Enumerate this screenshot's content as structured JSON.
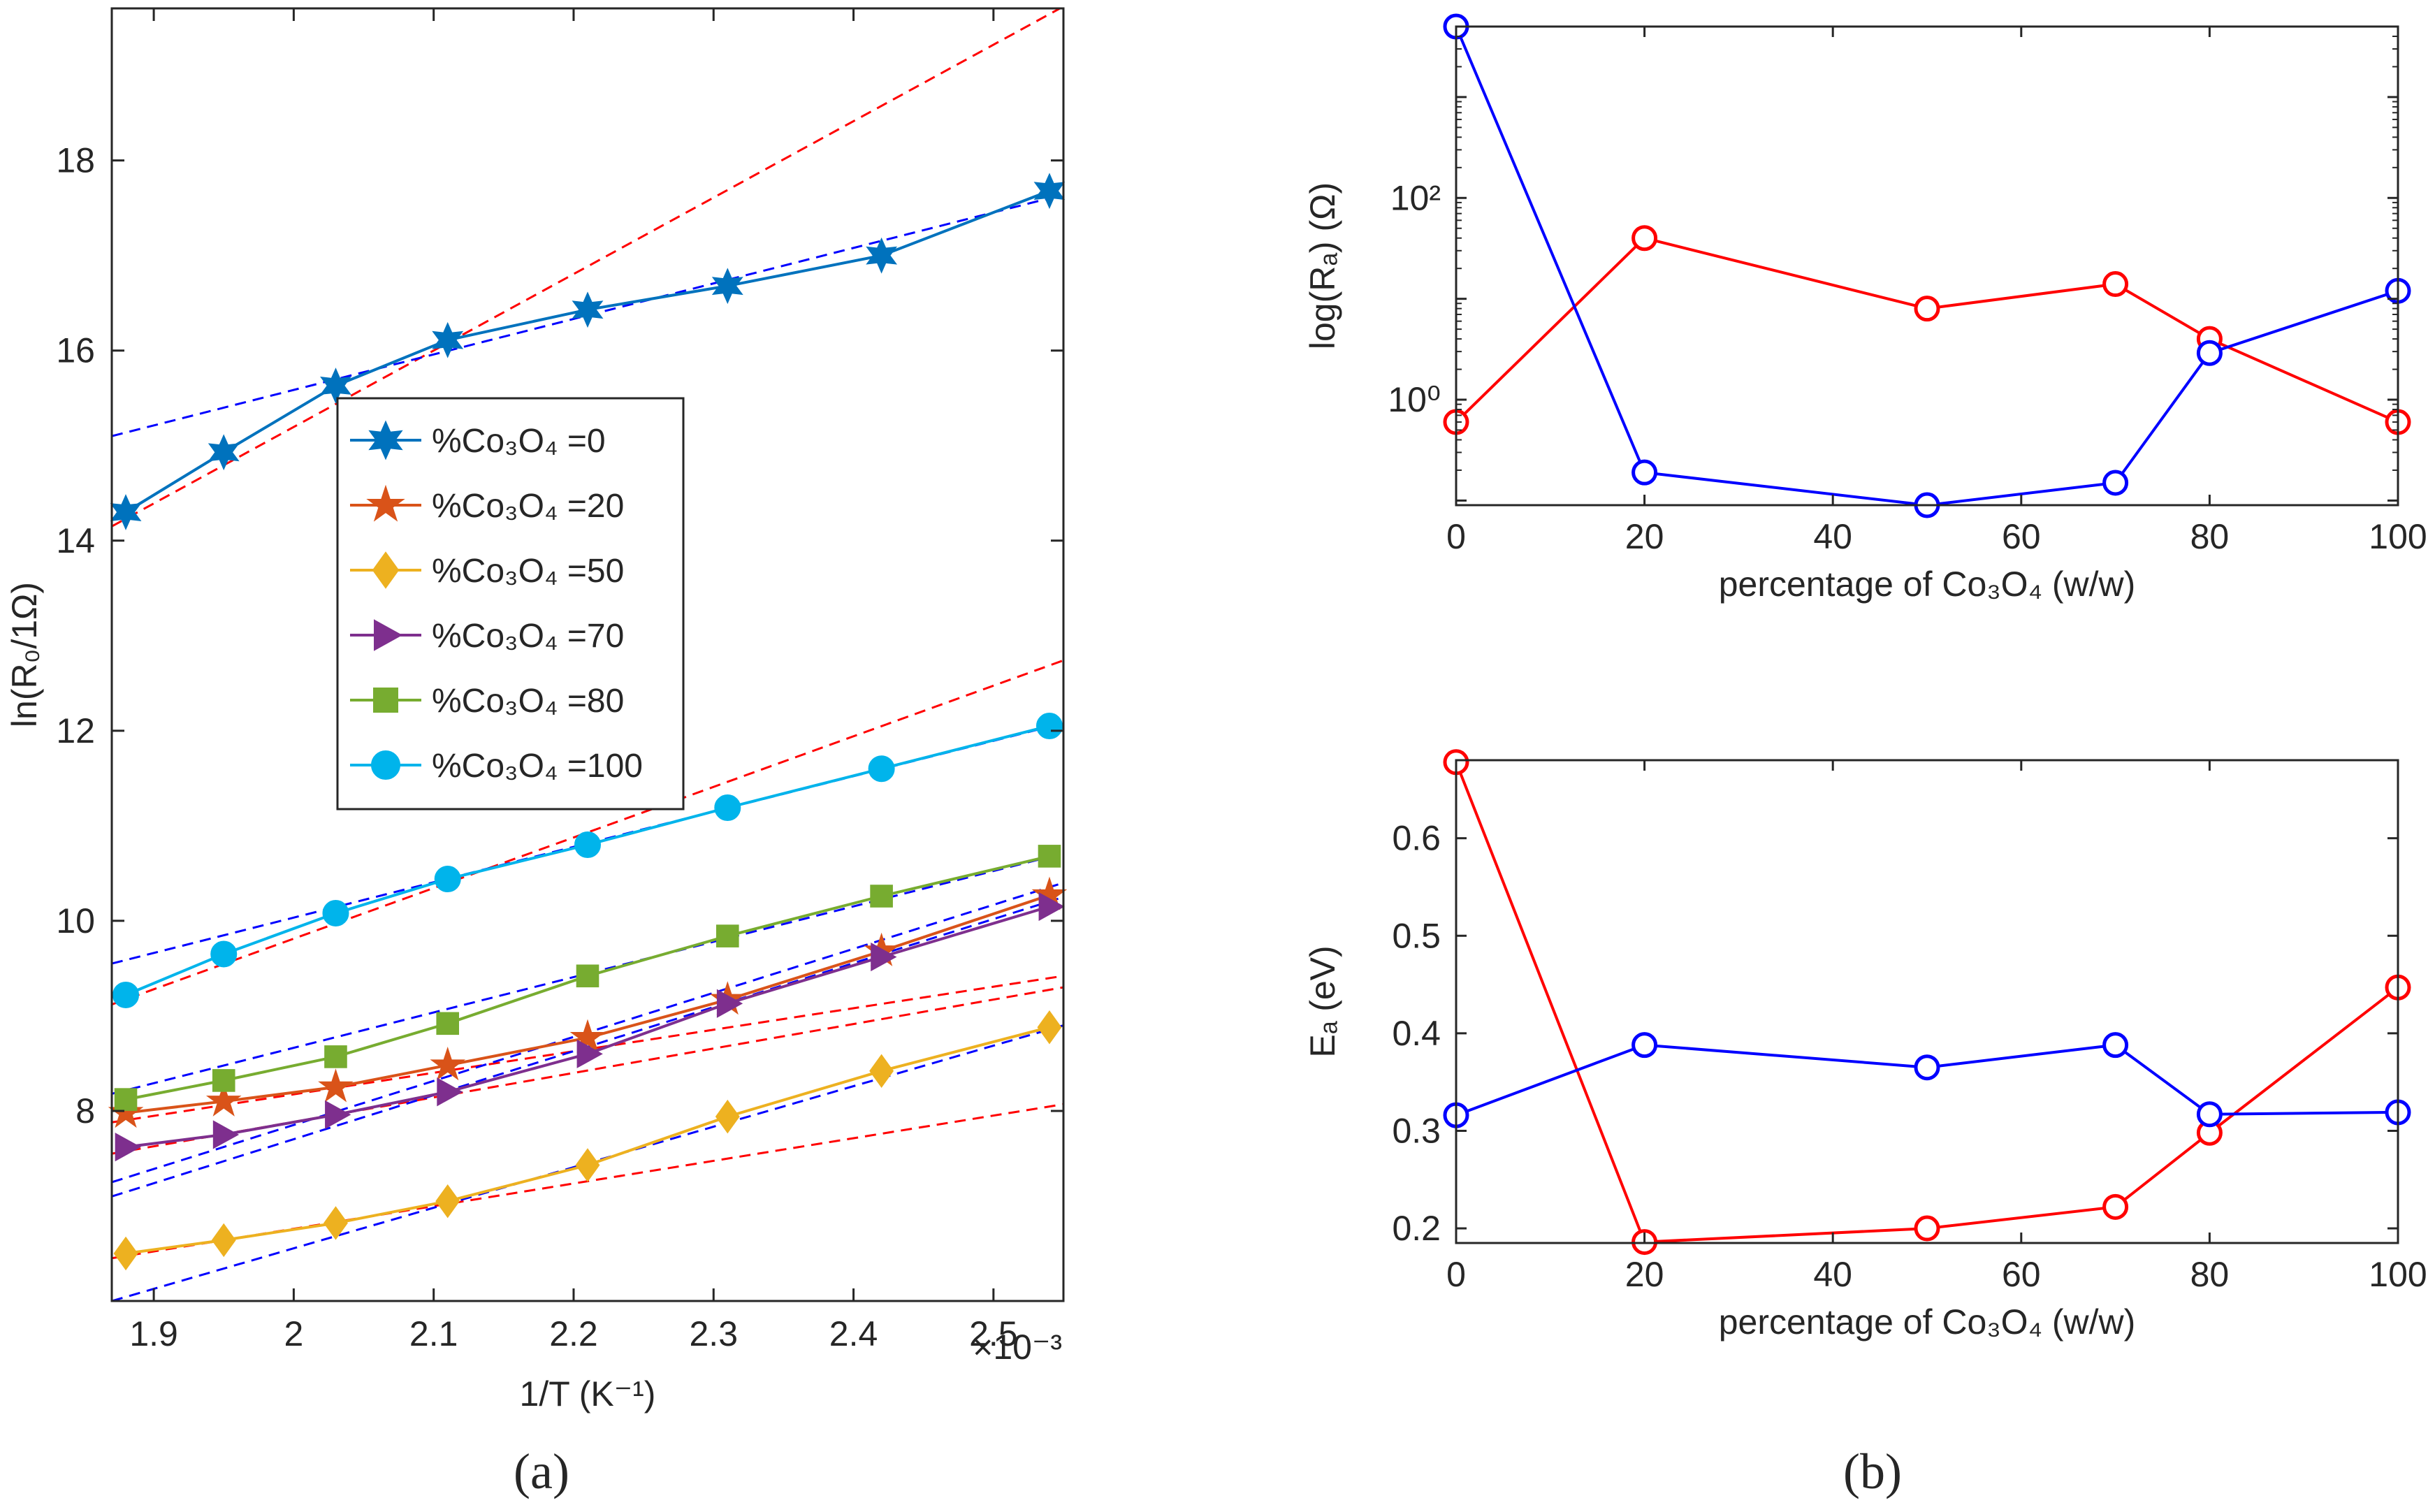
{
  "chart_data": [
    {
      "panel": "(a)",
      "type": "line",
      "xlabel": "1/T (K⁻¹)",
      "ylabel": "ln(R₀/1Ω)",
      "x_exponent_label": "×10⁻³",
      "xlim": [
        0.00187,
        0.00255
      ],
      "ylim": [
        6.0,
        19.6
      ],
      "xticks": [
        0.0019,
        0.002,
        0.0021,
        0.0022,
        0.0023,
        0.0024,
        0.0025
      ],
      "xtick_labels": [
        "1.9",
        "2",
        "2.1",
        "2.2",
        "2.3",
        "2.4",
        "2.5"
      ],
      "yticks": [
        8,
        10,
        12,
        14,
        16,
        18
      ],
      "ytick_labels": [
        "8",
        "10",
        "12",
        "14",
        "16",
        "18"
      ],
      "legend_position": "center-left",
      "x": [
        0.00188,
        0.00195,
        0.00203,
        0.00211,
        0.00221,
        0.00231,
        0.00242,
        0.00254
      ],
      "series": [
        {
          "name": "%Co₃O₄ =0",
          "color": "#0072BD",
          "marker": "hexagram",
          "values": [
            14.3,
            14.93,
            15.63,
            16.11,
            16.43,
            16.68,
            17.0,
            17.68
          ]
        },
        {
          "name": "%Co₃O₄ =20",
          "color": "#D95319",
          "marker": "pentagram",
          "values": [
            7.98,
            8.1,
            8.25,
            8.48,
            8.77,
            9.17,
            9.68,
            10.27
          ]
        },
        {
          "name": "%Co₃O₄ =50",
          "color": "#EDB120",
          "marker": "diamond",
          "values": [
            6.5,
            6.64,
            6.82,
            7.05,
            7.43,
            7.94,
            8.42,
            8.88
          ]
        },
        {
          "name": "%Co₃O₄ =70",
          "color": "#7E2F8E",
          "marker": "triangle-right",
          "values": [
            7.62,
            7.75,
            7.96,
            8.2,
            8.6,
            9.13,
            9.62,
            10.15
          ]
        },
        {
          "name": "%Co₃O₄ =80",
          "color": "#77AC30",
          "marker": "square",
          "values": [
            8.12,
            8.32,
            8.57,
            8.92,
            9.42,
            9.84,
            10.26,
            10.68
          ]
        },
        {
          "name": "%Co₃O₄ =100",
          "color": "#00B4EB",
          "marker": "circle",
          "values": [
            9.22,
            9.65,
            10.08,
            10.44,
            10.8,
            11.19,
            11.6,
            12.05
          ]
        }
      ],
      "fit_lines": [
        {
          "color": "#FF0000",
          "x": [
            0.00187,
            0.00255
          ],
          "y": [
            14.15,
            19.62
          ]
        },
        {
          "color": "#0000FF",
          "x": [
            0.00187,
            0.00255
          ],
          "y": [
            15.1,
            17.64
          ]
        },
        {
          "color": "#FF0000",
          "x": [
            0.00187,
            0.00255
          ],
          "y": [
            9.12,
            12.74
          ]
        },
        {
          "color": "#0000FF",
          "x": [
            0.00187,
            0.00255
          ],
          "y": [
            9.55,
            12.08
          ]
        },
        {
          "color": "#FF0000",
          "x": [
            0.00187,
            0.00255
          ],
          "y": [
            7.88,
            9.42
          ]
        },
        {
          "color": "#0000FF",
          "x": [
            0.00187,
            0.00255
          ],
          "y": [
            8.18,
            10.71
          ]
        },
        {
          "color": "#FF0000",
          "x": [
            0.00187,
            0.00255
          ],
          "y": [
            7.55,
            9.3
          ]
        },
        {
          "color": "#0000FF",
          "x": [
            0.00187,
            0.00255
          ],
          "y": [
            7.25,
            10.4
          ]
        },
        {
          "color": "#0000FF",
          "x": [
            0.00187,
            0.00255
          ],
          "y": [
            7.1,
            10.25
          ]
        },
        {
          "color": "#FF0000",
          "x": [
            0.00187,
            0.00255
          ],
          "y": [
            6.45,
            8.07
          ]
        },
        {
          "color": "#0000FF",
          "x": [
            0.00187,
            0.00255
          ],
          "y": [
            6.0,
            8.9
          ]
        }
      ]
    },
    {
      "panel": "(b) top",
      "type": "line",
      "xlabel": "percentage of Co₃O₄ (w/w)",
      "ylabel": "log(Rₐ) (Ω)",
      "yscale": "log",
      "xlim": [
        0,
        100
      ],
      "ylim": [
        0.09,
        5000
      ],
      "xticks": [
        0,
        20,
        40,
        60,
        80,
        100
      ],
      "xtick_labels": [
        "0",
        "20",
        "40",
        "60",
        "80",
        "100"
      ],
      "yticks": [
        1,
        100
      ],
      "ytick_labels": [
        "10⁰",
        "10²"
      ],
      "x": [
        0,
        20,
        50,
        70,
        80,
        100
      ],
      "series": [
        {
          "color": "#FF0000",
          "values": [
            0.6,
            40,
            8,
            14,
            4,
            0.6
          ]
        },
        {
          "color": "#0000FF",
          "values": [
            5000,
            0.19,
            0.09,
            0.15,
            2.9,
            12
          ]
        }
      ]
    },
    {
      "panel": "(b) bottom",
      "type": "line",
      "xlabel": "percentage of Co₃O₄ (w/w)",
      "ylabel": "Eₐ (eV)",
      "xlim": [
        0,
        100
      ],
      "ylim": [
        0.185,
        0.68
      ],
      "xticks": [
        0,
        20,
        40,
        60,
        80,
        100
      ],
      "xtick_labels": [
        "0",
        "20",
        "40",
        "60",
        "80",
        "100"
      ],
      "yticks": [
        0.2,
        0.3,
        0.4,
        0.5,
        0.6
      ],
      "ytick_labels": [
        "0.2",
        "0.3",
        "0.4",
        "0.5",
        "0.6"
      ],
      "x": [
        0,
        20,
        50,
        70,
        80,
        100
      ],
      "series": [
        {
          "color": "#FF0000",
          "values": [
            0.678,
            0.186,
            0.2,
            0.222,
            0.298,
            0.447
          ]
        },
        {
          "color": "#0000FF",
          "values": [
            0.316,
            0.388,
            0.365,
            0.388,
            0.317,
            0.319
          ]
        }
      ]
    }
  ],
  "captions": {
    "a": "(a)",
    "b": "(b)"
  }
}
